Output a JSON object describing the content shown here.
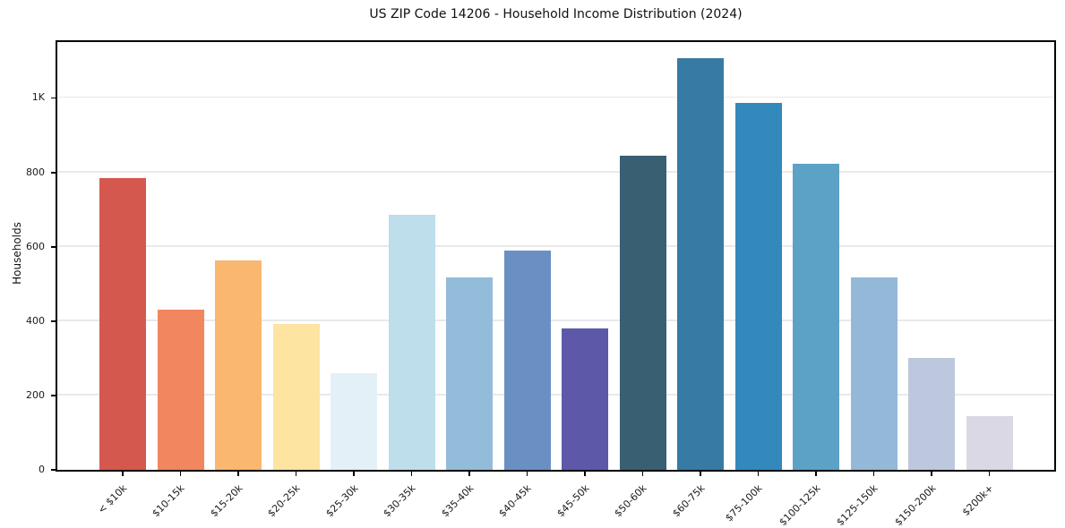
{
  "chart_data": {
    "type": "bar",
    "title": "US ZIP Code 14206 - Household Income Distribution (2024)",
    "xlabel": "",
    "ylabel": "Households",
    "categories": [
      "< $10k",
      "$10-15k",
      "$15-20k",
      "$20-25k",
      "$25-30k",
      "$30-35k",
      "$35-40k",
      "$40-45k",
      "$45-50k",
      "$50-60k",
      "$60-75k",
      "$75-100k",
      "$100-125k",
      "$125-150k",
      "$150-200k",
      "$200k+"
    ],
    "values": [
      785,
      432,
      563,
      392,
      261,
      685,
      517,
      590,
      380,
      845,
      1106,
      986,
      822,
      517,
      300,
      145
    ],
    "bar_colors": [
      "#d5584f",
      "#f2875f",
      "#f9b76f",
      "#fde4a1",
      "#e4f0f7",
      "#bedeeb",
      "#92bcd9",
      "#6a90c3",
      "#5d59a8",
      "#395f73",
      "#377ba4",
      "#3389bc",
      "#5ba2c6",
      "#94b8d7",
      "#bdc8de",
      "#d9d8e4"
    ],
    "ytick_labels": [
      "0",
      "200",
      "400",
      "600",
      "800",
      "1K"
    ],
    "ytick_values": [
      0,
      200,
      400,
      600,
      800,
      1000
    ],
    "ylim": [
      0,
      1160
    ],
    "grid": "horizontal-only",
    "legend": "none",
    "background_color": "#ffffff",
    "axis_color": "#000000",
    "grid_color": "#e9e9e9"
  }
}
